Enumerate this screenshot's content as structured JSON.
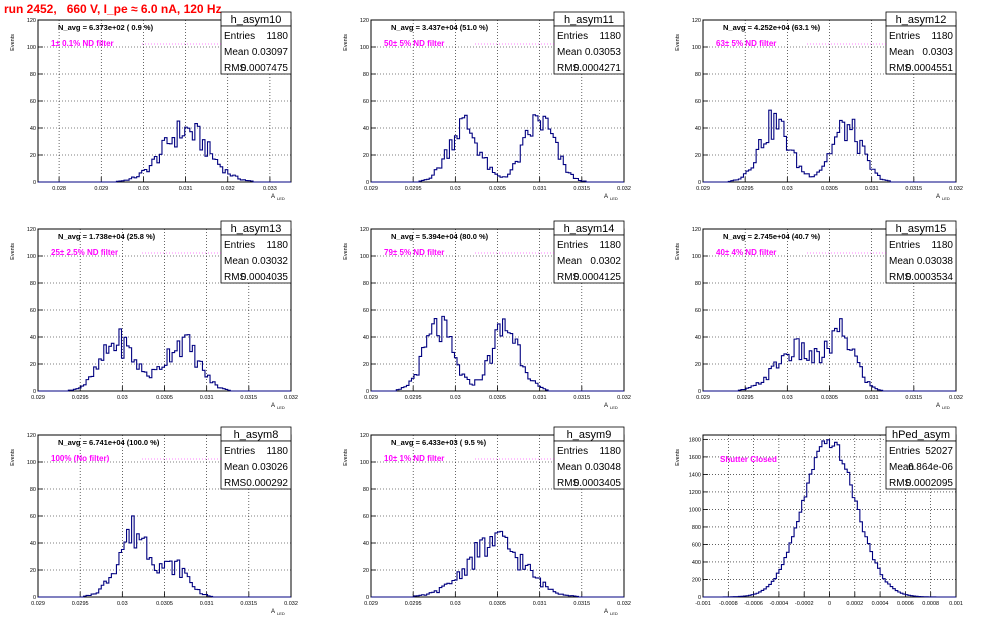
{
  "canvas": {
    "title": "run 2452,   660 V, I_pe ≈ 6.0 nA, 120 Hz"
  },
  "stat_labels": {
    "entries": "Entries",
    "mean": "Mean",
    "rms": "RMS"
  },
  "chart_data": [
    {
      "type": "bar",
      "name": "h_asym10",
      "navg": "N_avg = 6.373e+02 ( 0.9 %)",
      "annotation": "1± 0.1% ND filter",
      "stats": {
        "entries": "1180",
        "mean": "0.03097",
        "rms": "0.0007475"
      },
      "ylabel": "Events",
      "xlabel": "A_LED",
      "xlim": [
        0.0275,
        0.0335
      ],
      "ylim": [
        0,
        120
      ],
      "xticks": [
        0.028,
        0.029,
        0.03,
        0.031,
        0.032,
        0.033
      ],
      "xtick_labels": [
        "0.028",
        "0.029",
        "0.03",
        "0.031",
        "0.032",
        "0.033"
      ],
      "yticks": [
        0,
        20,
        40,
        60,
        80,
        100,
        120
      ],
      "bins": 100,
      "peaks": [
        {
          "mu": 0.031,
          "sigma": 0.00055,
          "height": 38
        }
      ],
      "noise": 0.3,
      "color": "#000080"
    },
    {
      "type": "bar",
      "name": "h_asym11",
      "navg": "N_avg = 3.437e+04 (51.0 %)",
      "annotation": "50± 5% ND filter",
      "stats": {
        "entries": "1180",
        "mean": "0.03053",
        "rms": "0.0004271"
      },
      "ylabel": "Events",
      "xlabel": "A_LED",
      "xlim": [
        0.029,
        0.032
      ],
      "ylim": [
        0,
        120
      ],
      "xticks": [
        0.029,
        0.0295,
        0.03,
        0.0305,
        0.031,
        0.0315,
        0.032
      ],
      "xtick_labels": [
        "0.029",
        "0.0295",
        "0.03",
        "0.0305",
        "0.031",
        "0.0315",
        "0.032"
      ],
      "yticks": [
        0,
        20,
        40,
        60,
        80,
        100,
        120
      ],
      "bins": 100,
      "peaks": [
        {
          "mu": 0.0301,
          "sigma": 0.00018,
          "height": 42
        },
        {
          "mu": 0.031,
          "sigma": 0.00018,
          "height": 45
        }
      ],
      "noise": 0.3,
      "color": "#000080"
    },
    {
      "type": "bar",
      "name": "h_asym12",
      "navg": "N_avg = 4.252e+04 (63.1 %)",
      "annotation": "63± 5% ND filter",
      "stats": {
        "entries": "1180",
        "mean": "0.0303",
        "rms": "0.0004551"
      },
      "ylabel": "Events",
      "xlabel": "A_LED",
      "xlim": [
        0.029,
        0.032
      ],
      "ylim": [
        0,
        120
      ],
      "xticks": [
        0.029,
        0.0295,
        0.03,
        0.0305,
        0.031,
        0.0315,
        0.032
      ],
      "xtick_labels": [
        "0.029",
        "0.0295",
        "0.03",
        "0.0305",
        "0.031",
        "0.0315",
        "0.032"
      ],
      "yticks": [
        0,
        20,
        40,
        60,
        80,
        100,
        120
      ],
      "bins": 100,
      "peaks": [
        {
          "mu": 0.02985,
          "sigma": 0.00018,
          "height": 43
        },
        {
          "mu": 0.0307,
          "sigma": 0.00018,
          "height": 40
        }
      ],
      "noise": 0.3,
      "color": "#000080"
    },
    {
      "type": "bar",
      "name": "h_asym13",
      "navg": "N_avg = 1.738e+04 (25.8 %)",
      "annotation": "25± 2.5% ND filter",
      "stats": {
        "entries": "1180",
        "mean": "0.03032",
        "rms": "0.0004035"
      },
      "ylabel": "Events",
      "xlabel": "A_LED",
      "xlim": [
        0.029,
        0.032
      ],
      "ylim": [
        0,
        120
      ],
      "xticks": [
        0.029,
        0.0295,
        0.03,
        0.0305,
        0.031,
        0.0315,
        0.032
      ],
      "xtick_labels": [
        "0.029",
        "0.0295",
        "0.03",
        "0.0305",
        "0.031",
        "0.0315",
        "0.032"
      ],
      "yticks": [
        0,
        20,
        40,
        60,
        80,
        100,
        120
      ],
      "bins": 100,
      "peaks": [
        {
          "mu": 0.02995,
          "sigma": 0.0002,
          "height": 36
        },
        {
          "mu": 0.0307,
          "sigma": 0.0002,
          "height": 36
        }
      ],
      "noise": 0.3,
      "color": "#000080"
    },
    {
      "type": "bar",
      "name": "h_asym14",
      "navg": "N_avg = 5.394e+04 (80.0 %)",
      "annotation": "79± 5% ND filter",
      "stats": {
        "entries": "1180",
        "mean": "0.0302",
        "rms": "0.0004125"
      },
      "ylabel": "Events",
      "xlabel": "A_LED",
      "xlim": [
        0.029,
        0.032
      ],
      "ylim": [
        0,
        120
      ],
      "xticks": [
        0.029,
        0.0295,
        0.03,
        0.0305,
        0.031,
        0.0315,
        0.032
      ],
      "xtick_labels": [
        "0.029",
        "0.0295",
        "0.03",
        "0.0305",
        "0.031",
        "0.0315",
        "0.032"
      ],
      "yticks": [
        0,
        20,
        40,
        60,
        80,
        100,
        120
      ],
      "bins": 100,
      "peaks": [
        {
          "mu": 0.0298,
          "sigma": 0.00017,
          "height": 46
        },
        {
          "mu": 0.0306,
          "sigma": 0.00017,
          "height": 47
        }
      ],
      "noise": 0.3,
      "color": "#000080"
    },
    {
      "type": "bar",
      "name": "h_asym15",
      "navg": "N_avg = 2.745e+04 (40.7 %)",
      "annotation": "40± 4% ND filter",
      "stats": {
        "entries": "1180",
        "mean": "0.03038",
        "rms": "0.0003534"
      },
      "ylabel": "Events",
      "xlabel": "A_LED",
      "xlim": [
        0.029,
        0.032
      ],
      "ylim": [
        0,
        120
      ],
      "xticks": [
        0.029,
        0.0295,
        0.03,
        0.0305,
        0.031,
        0.0315,
        0.032
      ],
      "xtick_labels": [
        "0.029",
        "0.0295",
        "0.03",
        "0.0305",
        "0.031",
        "0.0315",
        "0.032"
      ],
      "yticks": [
        0,
        20,
        40,
        60,
        80,
        100,
        120
      ],
      "bins": 100,
      "peaks": [
        {
          "mu": 0.0301,
          "sigma": 0.00024,
          "height": 30
        },
        {
          "mu": 0.03065,
          "sigma": 0.00016,
          "height": 40
        }
      ],
      "noise": 0.3,
      "color": "#000080"
    },
    {
      "type": "bar",
      "name": "h_asym8",
      "navg": "N_avg = 6.741e+04 (100.0 %)",
      "annotation": "100% (No filter)",
      "stats": {
        "entries": "1180",
        "mean": "0.03026",
        "rms": "0.000292"
      },
      "ylabel": "Events",
      "xlabel": "A_LED",
      "xlim": [
        0.029,
        0.032
      ],
      "ylim": [
        0,
        120
      ],
      "xticks": [
        0.029,
        0.0295,
        0.03,
        0.0305,
        0.031,
        0.0315,
        0.032
      ],
      "xtick_labels": [
        "0.029",
        "0.0295",
        "0.03",
        "0.0305",
        "0.031",
        "0.0315",
        "0.032"
      ],
      "yticks": [
        0,
        20,
        40,
        60,
        80,
        100,
        120
      ],
      "bins": 100,
      "peaks": [
        {
          "mu": 0.03015,
          "sigma": 0.0002,
          "height": 48
        },
        {
          "mu": 0.03065,
          "sigma": 0.00015,
          "height": 20
        }
      ],
      "noise": 0.3,
      "color": "#000080"
    },
    {
      "type": "bar",
      "name": "h_asym9",
      "navg": "N_avg = 6.433e+03 ( 9.5 %)",
      "annotation": "10± 1% ND filter",
      "stats": {
        "entries": "1180",
        "mean": "0.03048",
        "rms": "0.0003405"
      },
      "ylabel": "Events",
      "xlabel": "A_LED",
      "xlim": [
        0.029,
        0.032
      ],
      "ylim": [
        0,
        120
      ],
      "xticks": [
        0.029,
        0.0295,
        0.03,
        0.0305,
        0.031,
        0.0315,
        0.032
      ],
      "xtick_labels": [
        "0.029",
        "0.0295",
        "0.03",
        "0.0305",
        "0.031",
        "0.0315",
        "0.032"
      ],
      "yticks": [
        0,
        20,
        40,
        60,
        80,
        100,
        120
      ],
      "bins": 100,
      "peaks": [
        {
          "mu": 0.03048,
          "sigma": 0.00033,
          "height": 40
        }
      ],
      "noise": 0.3,
      "color": "#000080"
    },
    {
      "type": "bar",
      "name": "hPed_asym",
      "navg": "",
      "annotation": "Shutter Closed",
      "stats": {
        "entries": "52027",
        "mean": "6.864e-06",
        "rms": "0.0002095"
      },
      "ylabel": "Events",
      "xlabel": "",
      "xlim": [
        -0.001,
        0.001
      ],
      "ylim": [
        0,
        1850
      ],
      "xticks": [
        -0.001,
        -0.0008,
        -0.0006,
        -0.0004,
        -0.0002,
        0,
        0.0002,
        0.0004,
        0.0006,
        0.0008,
        0.001
      ],
      "xtick_labels": [
        "-0.001",
        "-0.0008",
        "-0.0006",
        "-0.0004",
        "-0.0002",
        "0",
        "0.0002",
        "0.0004",
        "0.0006",
        "0.0008",
        "0.001"
      ],
      "yticks": [
        0,
        200,
        400,
        600,
        800,
        1000,
        1200,
        1400,
        1600,
        1800
      ],
      "bins": 100,
      "peaks": [
        {
          "mu": 0.0,
          "sigma": 0.00021,
          "height": 1770
        }
      ],
      "noise": 0.04,
      "color": "#000080"
    }
  ]
}
